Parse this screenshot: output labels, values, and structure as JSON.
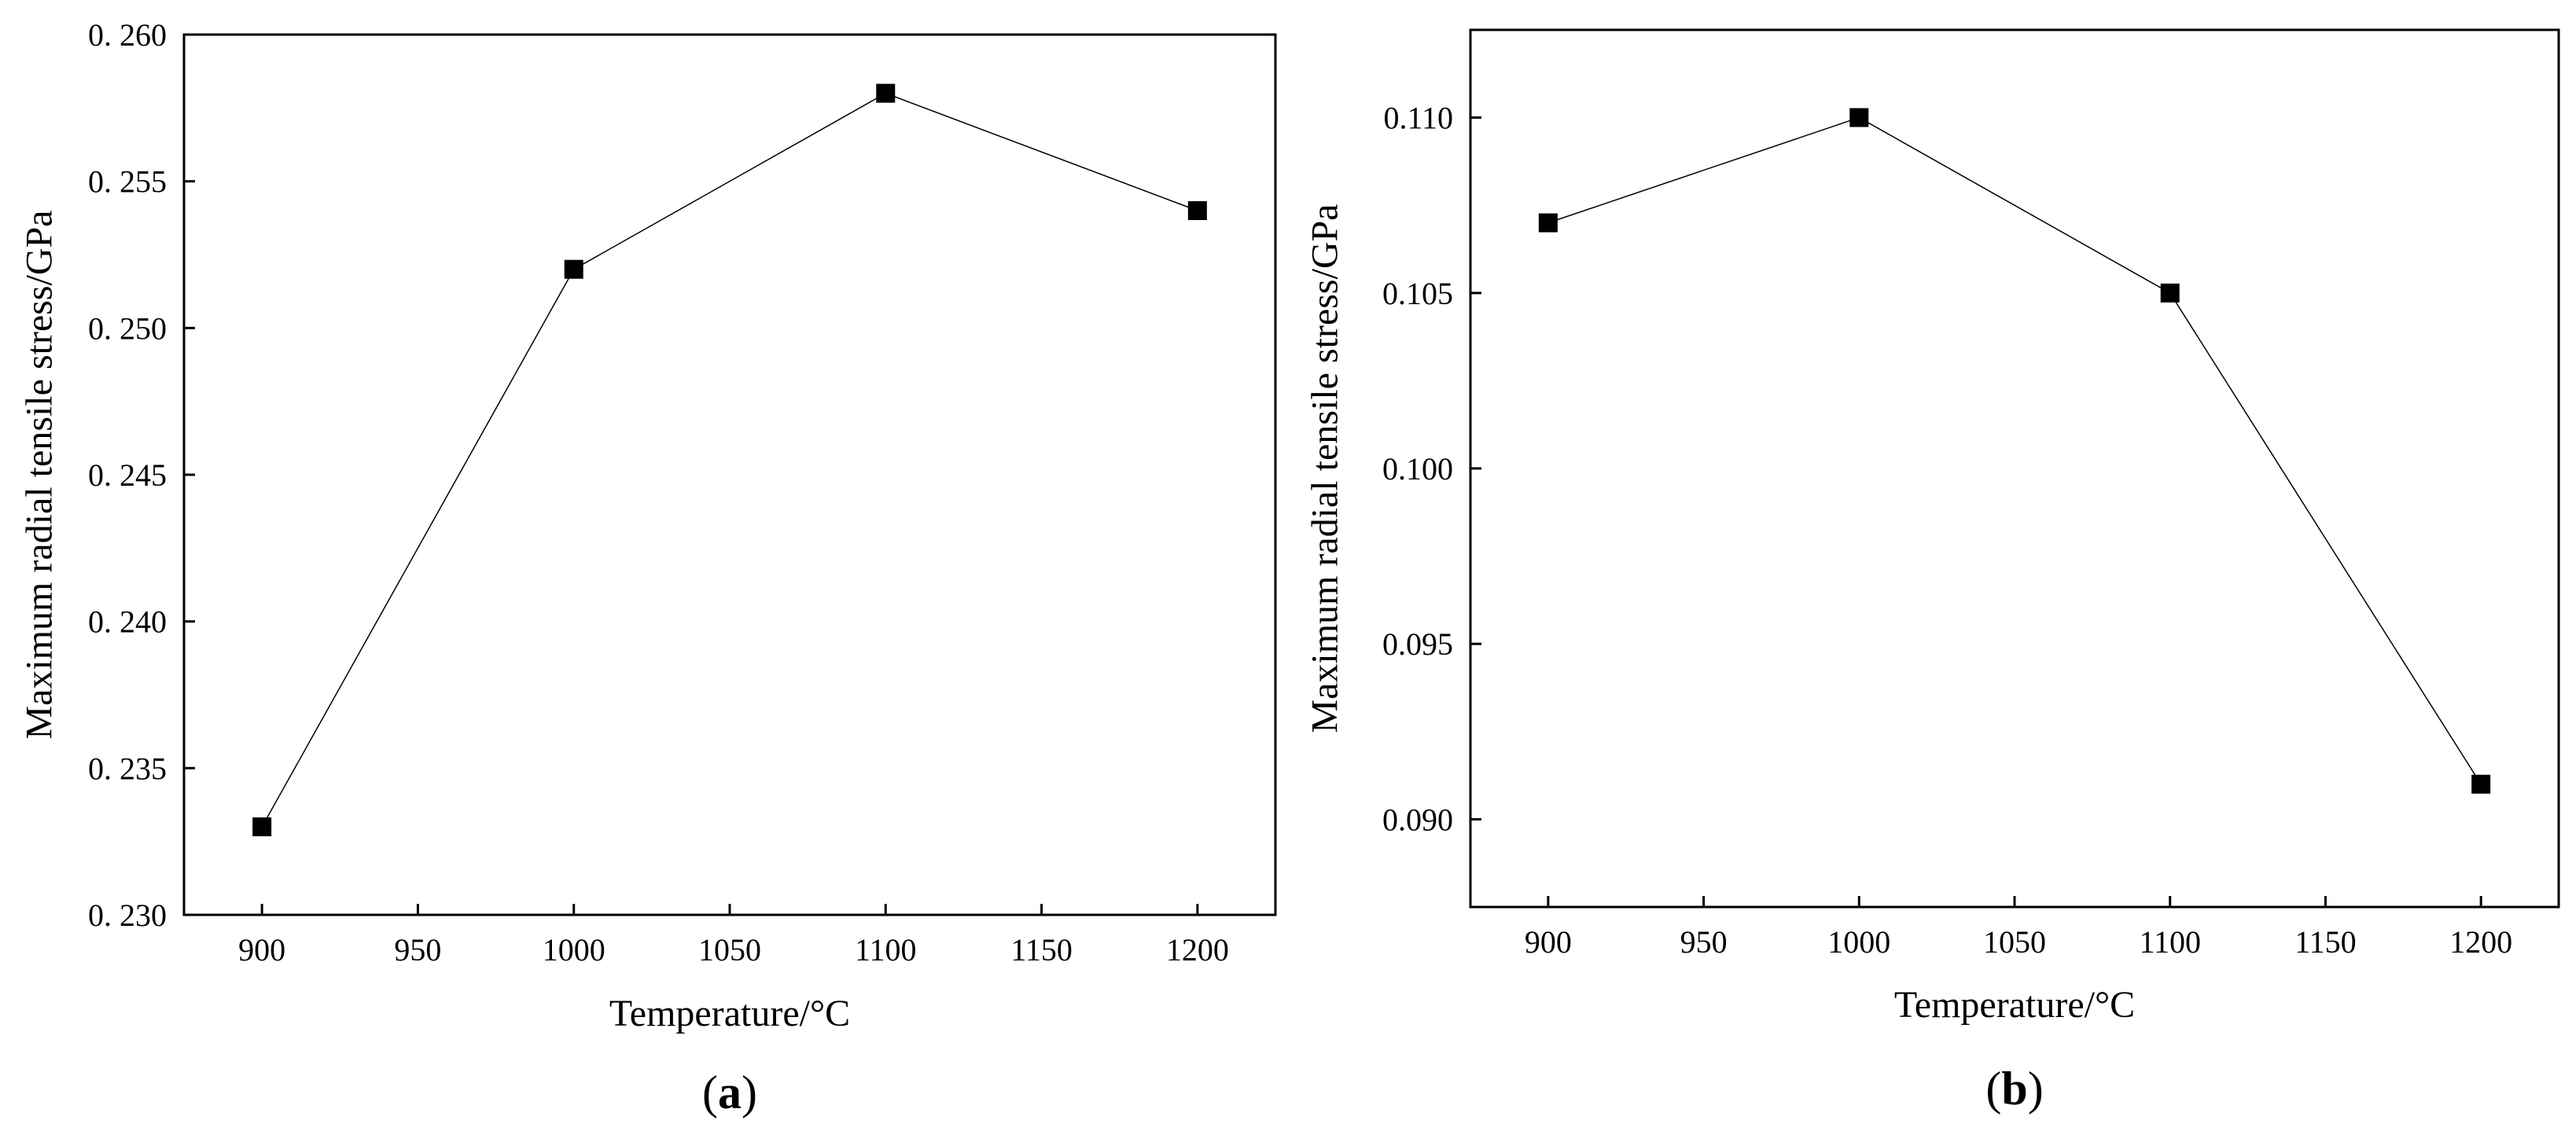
{
  "chart_data": [
    {
      "type": "line",
      "panel_label": "(a)",
      "panel_letter": "a",
      "xlabel": "Temperature/°C",
      "ylabel": "Maximum radial tensile stress/GPa",
      "x": [
        900,
        1000,
        1100,
        1200
      ],
      "series": [
        {
          "values": [
            0.233,
            0.252,
            0.258,
            0.254
          ],
          "color": "#000000",
          "marker": "square"
        }
      ],
      "xlim": [
        875,
        1225
      ],
      "ylim": [
        0.23,
        0.26
      ],
      "xticks": [
        900,
        950,
        1000,
        1050,
        1100,
        1150,
        1200
      ],
      "xtick_labels": [
        "900",
        "950",
        "1000",
        "1050",
        "1100",
        "1150",
        "1200"
      ],
      "yticks": [
        0.23,
        0.235,
        0.24,
        0.245,
        0.25,
        0.255,
        0.26
      ],
      "ytick_labels": [
        "0. 230",
        "0. 235",
        "0. 240",
        "0. 245",
        "0. 250",
        "0. 255",
        "0. 260"
      ],
      "grid": false,
      "legend": "none"
    },
    {
      "type": "line",
      "panel_label": "(b)",
      "panel_letter": "b",
      "xlabel": "Temperature/°C",
      "ylabel": "Maximum radial tensile stress/GPa",
      "x": [
        900,
        1000,
        1100,
        1200
      ],
      "series": [
        {
          "values": [
            0.107,
            0.11,
            0.105,
            0.091
          ],
          "color": "#000000",
          "marker": "square"
        }
      ],
      "xlim": [
        875,
        1225
      ],
      "ylim": [
        0.0875,
        0.1125
      ],
      "xticks": [
        900,
        950,
        1000,
        1050,
        1100,
        1150,
        1200
      ],
      "xtick_labels": [
        "900",
        "950",
        "1000",
        "1050",
        "1100",
        "1150",
        "1200"
      ],
      "yticks": [
        0.09,
        0.095,
        0.1,
        0.105,
        0.11
      ],
      "ytick_labels": [
        "0.090",
        "0.095",
        "0.100",
        "0.105",
        "0.110"
      ],
      "grid": false,
      "legend": "none"
    }
  ]
}
